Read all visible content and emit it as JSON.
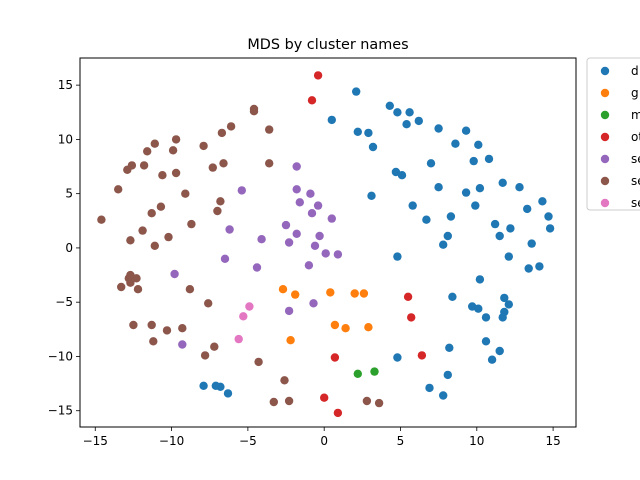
{
  "chart_data": {
    "type": "scatter",
    "title": "MDS by cluster names",
    "xlabel": "",
    "ylabel": "",
    "xlim": [
      -16,
      16.5
    ],
    "ylim": [
      -16.5,
      17.5
    ],
    "xticks": [
      -15,
      -10,
      -5,
      0,
      5,
      10,
      15
    ],
    "yticks": [
      -15,
      -10,
      -5,
      0,
      5,
      10,
      15
    ],
    "grid": false,
    "legend_placement": "outside-top-right",
    "series": [
      {
        "name": "d",
        "color": "#1f77b4",
        "points": [
          [
            2.1,
            14.4
          ],
          [
            0.5,
            11.8
          ],
          [
            2.2,
            10.7
          ],
          [
            2.9,
            10.6
          ],
          [
            3.2,
            9.3
          ],
          [
            4.3,
            13.1
          ],
          [
            4.8,
            12.5
          ],
          [
            5.6,
            12.5
          ],
          [
            5.4,
            11.4
          ],
          [
            6.2,
            11.7
          ],
          [
            7.5,
            11.0
          ],
          [
            4.7,
            7.0
          ],
          [
            5.1,
            6.7
          ],
          [
            3.1,
            4.8
          ],
          [
            7.0,
            7.8
          ],
          [
            7.5,
            5.6
          ],
          [
            5.8,
            3.9
          ],
          [
            6.7,
            2.6
          ],
          [
            8.3,
            2.9
          ],
          [
            8.1,
            1.1
          ],
          [
            7.8,
            0.3
          ],
          [
            4.8,
            -0.8
          ],
          [
            8.6,
            9.6
          ],
          [
            9.3,
            10.8
          ],
          [
            9.3,
            5.1
          ],
          [
            9.8,
            8.0
          ],
          [
            9.9,
            3.9
          ],
          [
            10.1,
            9.5
          ],
          [
            10.2,
            5.5
          ],
          [
            10.8,
            8.2
          ],
          [
            11.2,
            2.2
          ],
          [
            11.5,
            1.1
          ],
          [
            11.7,
            6.0
          ],
          [
            12.2,
            1.8
          ],
          [
            12.1,
            -0.8
          ],
          [
            12.8,
            5.6
          ],
          [
            13.3,
            3.6
          ],
          [
            13.6,
            0.4
          ],
          [
            14.3,
            4.3
          ],
          [
            14.7,
            2.9
          ],
          [
            14.8,
            1.8
          ],
          [
            14.1,
            -1.7
          ],
          [
            13.4,
            -1.9
          ],
          [
            10.2,
            -2.9
          ],
          [
            11.8,
            -4.6
          ],
          [
            12.1,
            -5.2
          ],
          [
            11.8,
            -5.9
          ],
          [
            11.7,
            -6.4
          ],
          [
            8.4,
            -4.5
          ],
          [
            9.7,
            -5.4
          ],
          [
            10.1,
            -5.6
          ],
          [
            10.6,
            -6.4
          ],
          [
            10.6,
            -8.6
          ],
          [
            11.5,
            -9.5
          ],
          [
            11.0,
            -10.3
          ],
          [
            8.2,
            -9.2
          ],
          [
            8.1,
            -11.7
          ],
          [
            6.9,
            -12.9
          ],
          [
            7.8,
            -13.6
          ],
          [
            4.8,
            -10.1
          ],
          [
            -6.3,
            -13.4
          ],
          [
            -6.8,
            -12.8
          ],
          [
            -7.1,
            -12.7
          ],
          [
            -7.9,
            -12.7
          ]
        ]
      },
      {
        "name": "g",
        "color": "#ff7f0e",
        "points": [
          [
            -2.7,
            -3.8
          ],
          [
            -1.9,
            -4.3
          ],
          [
            0.4,
            -4.1
          ],
          [
            2.0,
            -4.2
          ],
          [
            2.6,
            -4.2
          ],
          [
            -2.2,
            -8.5
          ],
          [
            0.7,
            -7.1
          ],
          [
            1.4,
            -7.4
          ],
          [
            2.9,
            -7.3
          ]
        ]
      },
      {
        "name": "m",
        "color": "#2ca02c",
        "points": [
          [
            2.2,
            -11.6
          ],
          [
            3.3,
            -11.4
          ]
        ]
      },
      {
        "name": "ot",
        "color": "#d62728",
        "points": [
          [
            -0.4,
            15.9
          ],
          [
            -0.8,
            13.6
          ],
          [
            5.5,
            -4.5
          ],
          [
            5.7,
            -6.4
          ],
          [
            6.4,
            -9.9
          ],
          [
            0.7,
            -10.1
          ],
          [
            0.0,
            -13.8
          ],
          [
            0.9,
            -15.2
          ]
        ]
      },
      {
        "name": "se",
        "color": "#9467bd",
        "points": [
          [
            -1.8,
            7.5
          ],
          [
            -1.8,
            5.4
          ],
          [
            -1.6,
            4.2
          ],
          [
            -0.9,
            5.0
          ],
          [
            -0.8,
            3.2
          ],
          [
            -0.4,
            3.9
          ],
          [
            -2.5,
            2.1
          ],
          [
            -1.8,
            1.3
          ],
          [
            -2.3,
            0.5
          ],
          [
            -0.6,
            0.2
          ],
          [
            -0.3,
            1.1
          ],
          [
            0.5,
            2.7
          ],
          [
            0.1,
            -0.5
          ],
          [
            0.9,
            -0.6
          ],
          [
            -1.0,
            -1.6
          ],
          [
            -5.4,
            5.3
          ],
          [
            -6.2,
            1.7
          ],
          [
            -4.1,
            0.8
          ],
          [
            -6.5,
            -1.0
          ],
          [
            -4.4,
            -1.8
          ],
          [
            -9.8,
            -2.4
          ],
          [
            -2.3,
            -5.8
          ],
          [
            -0.7,
            -5.1
          ],
          [
            -9.3,
            -8.9
          ]
        ]
      },
      {
        "name": "se",
        "color": "#8c564b",
        "points": [
          [
            -4.6,
            12.8
          ],
          [
            -4.6,
            12.6
          ],
          [
            -6.1,
            11.2
          ],
          [
            -6.7,
            10.6
          ],
          [
            -3.6,
            10.9
          ],
          [
            -7.9,
            9.4
          ],
          [
            -9.7,
            10.0
          ],
          [
            -11.1,
            9.6
          ],
          [
            -9.9,
            9.0
          ],
          [
            -11.6,
            8.9
          ],
          [
            -12.6,
            7.6
          ],
          [
            -12.9,
            7.2
          ],
          [
            -11.8,
            7.6
          ],
          [
            -7.3,
            7.4
          ],
          [
            -6.6,
            7.8
          ],
          [
            -3.6,
            7.8
          ],
          [
            -9.7,
            6.9
          ],
          [
            -10.6,
            6.7
          ],
          [
            -13.5,
            5.4
          ],
          [
            -9.1,
            5.0
          ],
          [
            -6.8,
            4.3
          ],
          [
            -7.0,
            3.4
          ],
          [
            -11.3,
            3.2
          ],
          [
            -10.7,
            3.8
          ],
          [
            -8.7,
            2.2
          ],
          [
            -14.6,
            2.6
          ],
          [
            -11.9,
            1.6
          ],
          [
            -10.2,
            1.0
          ],
          [
            -12.7,
            0.7
          ],
          [
            -11.1,
            0.2
          ],
          [
            -12.7,
            -2.5
          ],
          [
            -12.8,
            -2.8
          ],
          [
            -12.3,
            -2.8
          ],
          [
            -12.7,
            -3.2
          ],
          [
            -12.2,
            -3.8
          ],
          [
            -13.3,
            -3.6
          ],
          [
            -8.8,
            -3.8
          ],
          [
            -7.6,
            -5.1
          ],
          [
            -12.5,
            -7.1
          ],
          [
            -11.3,
            -7.1
          ],
          [
            -10.3,
            -7.6
          ],
          [
            -9.3,
            -7.4
          ],
          [
            -11.2,
            -8.6
          ],
          [
            -7.2,
            -9.1
          ],
          [
            -7.8,
            -9.9
          ],
          [
            -4.3,
            -10.5
          ],
          [
            -2.6,
            -12.2
          ],
          [
            -3.3,
            -14.2
          ],
          [
            -2.3,
            -14.1
          ],
          [
            2.8,
            -14.1
          ],
          [
            3.6,
            -14.3
          ]
        ]
      },
      {
        "name": "se",
        "color": "#e377c2",
        "points": [
          [
            -4.9,
            -5.4
          ],
          [
            -5.3,
            -6.3
          ],
          [
            -5.6,
            -8.4
          ]
        ]
      }
    ]
  }
}
